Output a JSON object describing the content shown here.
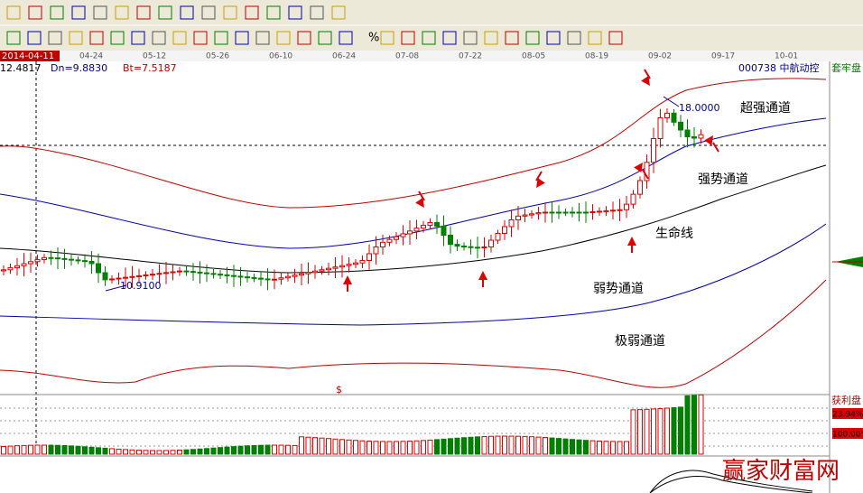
{
  "toolbar": {
    "percent": "%"
  },
  "timeline": {
    "cursor_date": "2014-04-11",
    "dates": [
      "04-24",
      "05-12",
      "05-26",
      "06-10",
      "06-24",
      "07-08",
      "07-22",
      "08-05",
      "08-19",
      "09-02",
      "09-17",
      "10-01"
    ]
  },
  "info": {
    "upper": "12.4817",
    "dn": "Dn=9.8830",
    "bt": "Bt=7.5187",
    "stock": "000738 中航动控",
    "tab": "套牢盘"
  },
  "annotations": {
    "high": "18.0000",
    "low": "10.9100",
    "marker": "$",
    "channels": [
      "超强通道",
      "强势通道",
      "生命线",
      "弱势通道",
      "极弱通道"
    ]
  },
  "side": {
    "profit": "获利盘",
    "pct1": "23.94%",
    "pct2": "100.00%"
  },
  "watermark": "赢家财富网"
}
